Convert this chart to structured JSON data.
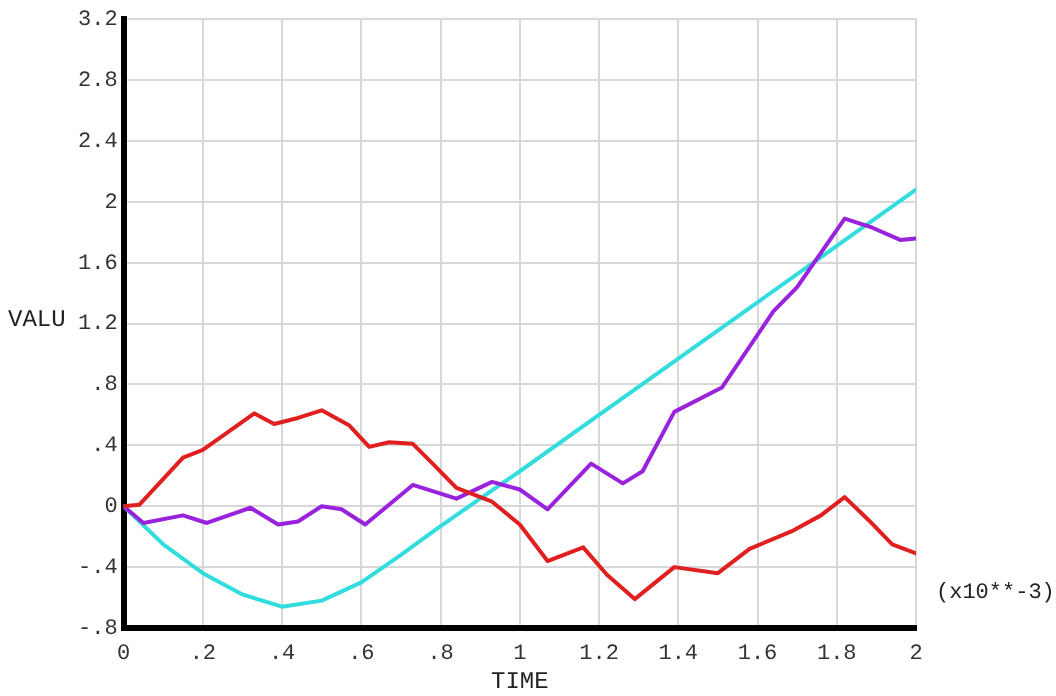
{
  "chart_data": {
    "type": "line",
    "xlabel": "TIME",
    "ylabel": "VALU",
    "annotations": [
      "(x10**-3)"
    ],
    "xlim": [
      0,
      2
    ],
    "ylim": [
      -0.8,
      3.2
    ],
    "xticks": [
      0,
      {
        "value": 0.2,
        "label": ".2"
      },
      {
        "value": 0.4,
        "label": ".4"
      },
      {
        "value": 0.6,
        "label": ".6"
      },
      {
        "value": 0.8,
        "label": ".8"
      },
      1,
      1.2,
      1.4,
      1.6,
      1.8,
      2
    ],
    "yticks": [
      {
        "value": -0.8,
        "label": "-.8"
      },
      {
        "value": -0.4,
        "label": "-.4"
      },
      0,
      {
        "value": 0.4,
        "label": ".4"
      },
      {
        "value": 0.8,
        "label": ".8"
      },
      1.2,
      1.6,
      2,
      2.4,
      2.8,
      3.2
    ],
    "grid": true,
    "legend": false,
    "marker": "none",
    "line_style": "solid",
    "series": [
      {
        "color": "#e02020",
        "x": [
          0,
          0.04,
          0.15,
          0.2,
          0.33,
          0.38,
          0.44,
          0.5,
          0.57,
          0.62,
          0.67,
          0.73,
          0.78,
          0.84,
          0.93,
          1.0,
          1.07,
          1.16,
          1.22,
          1.29,
          1.39,
          1.5,
          1.58,
          1.69,
          1.76,
          1.82,
          1.88,
          1.94,
          2.0
        ],
        "values": [
          0,
          0.01,
          0.32,
          0.37,
          0.61,
          0.54,
          0.58,
          0.63,
          0.53,
          0.39,
          0.42,
          0.41,
          0.28,
          0.12,
          0.03,
          -0.12,
          -0.36,
          -0.27,
          -0.45,
          -0.61,
          -0.4,
          -0.44,
          -0.28,
          -0.16,
          -0.06,
          0.06,
          -0.09,
          -0.25,
          -0.31
        ]
      },
      {
        "color": "#9922dd",
        "x": [
          0,
          0.05,
          0.15,
          0.21,
          0.32,
          0.39,
          0.44,
          0.5,
          0.55,
          0.61,
          0.73,
          0.84,
          0.93,
          1.0,
          1.07,
          1.18,
          1.26,
          1.31,
          1.39,
          1.51,
          1.64,
          1.7,
          1.82,
          1.89,
          1.96,
          2.0
        ],
        "values": [
          0,
          -0.11,
          -0.06,
          -0.11,
          -0.01,
          -0.12,
          -0.1,
          0,
          -0.02,
          -0.12,
          0.14,
          0.05,
          0.16,
          0.11,
          -0.02,
          0.28,
          0.15,
          0.23,
          0.62,
          0.78,
          1.28,
          1.44,
          1.89,
          1.83,
          1.75,
          1.76
        ]
      },
      {
        "color": "#33dddd",
        "x": [
          0,
          0.1,
          0.2,
          0.3,
          0.4,
          0.5,
          0.6,
          0.7,
          0.8,
          0.9,
          1.0,
          1.2,
          1.4,
          1.6,
          1.8,
          2.0
        ],
        "values": [
          0,
          -0.25,
          -0.44,
          -0.58,
          -0.66,
          -0.62,
          -0.5,
          -0.32,
          -0.13,
          0.05,
          0.23,
          0.6,
          0.97,
          1.34,
          1.71,
          2.08
        ]
      }
    ]
  }
}
